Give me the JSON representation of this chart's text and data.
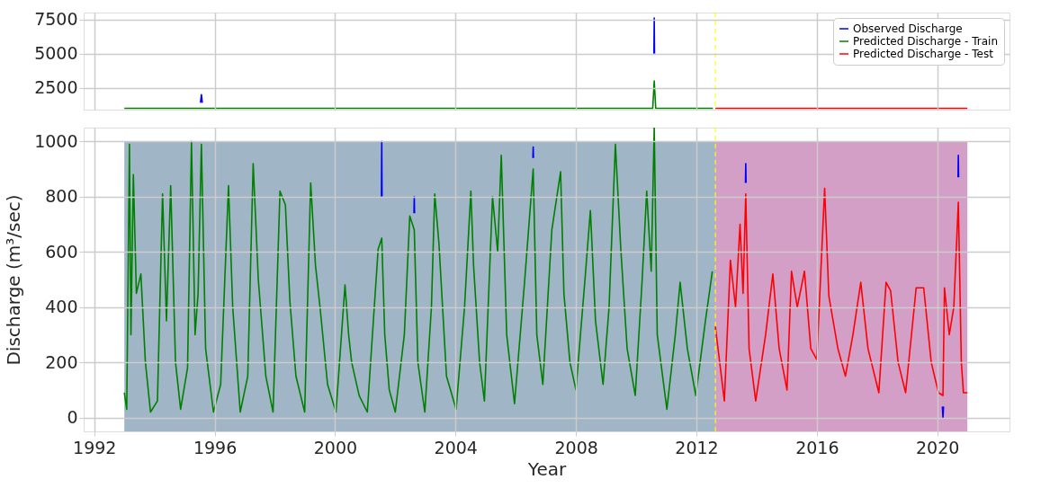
{
  "chart_data": [
    {
      "type": "line",
      "xlim": [
        1991.65,
        2022.4
      ],
      "xticks": [
        1992,
        1996,
        2000,
        2004,
        2008,
        2012,
        2016,
        2020
      ],
      "ylim": [
        900,
        8000
      ],
      "yticks": [
        2500,
        5000,
        7500
      ],
      "tick_labels": "y",
      "grid": true,
      "legend": "top right",
      "line_style": "solid",
      "ref_lines": [
        {
          "axis": "x",
          "value": 2012.63,
          "color": "#ffff00",
          "line_style": "dashed"
        }
      ],
      "series": [
        {
          "name": "Observed Discharge",
          "color": "#0000ff",
          "x": [
            1995.53,
            1995.56,
            1995.59,
            1995.6,
            2010.59,
            2010.6,
            2010.61
          ],
          "values": [
            1400,
            2000,
            1400,
            null,
            5000,
            7600,
            5000
          ]
        },
        {
          "name": "Predicted Discharge - Train",
          "color": "#008000",
          "x": [
            1993.0,
            2010.55,
            2010.6,
            2010.65,
            2012.55
          ],
          "values": [
            1000,
            1000,
            3000,
            1000,
            1000
          ]
        },
        {
          "name": "Predicted Discharge - Test",
          "color": "#ff0000",
          "x": [
            2012.63,
            2021.0
          ],
          "values": [
            1000,
            1000
          ]
        }
      ]
    },
    {
      "type": "line",
      "xlim": [
        1991.65,
        2022.4
      ],
      "xticks": [
        1992,
        1996,
        2000,
        2004,
        2008,
        2012,
        2016,
        2020
      ],
      "ylim": [
        -50,
        1050
      ],
      "yticks": [
        0,
        200,
        400,
        600,
        800,
        1000
      ],
      "xlabel": "Year",
      "ylabel": "Discharge (m³/sec)",
      "grid": true,
      "line_style": "solid",
      "ref_lines": [
        {
          "axis": "x",
          "value": 2012.63,
          "color": "#ffff00",
          "line_style": "dashed"
        }
      ],
      "bands": [
        {
          "axis": "x",
          "from": 1993.0,
          "to": 2012.63,
          "color": "#a0b5c5"
        },
        {
          "axis": "x",
          "from": 2012.63,
          "to": 2021.0,
          "color": "#d49fc7"
        }
      ],
      "series": [
        {
          "color": "#0000ff",
          "x": [
            2001.54,
            2001.55,
            2001.56,
            2001.6,
            2002.62,
            2002.63,
            2002.64,
            2002.7,
            2006.57,
            2006.58,
            2006.59,
            2006.6,
            2013.63,
            2013.64,
            2013.65,
            2013.7,
            2020.17,
            2020.19,
            2020.21,
            2020.25,
            2020.69,
            2020.7,
            2020.71
          ],
          "values": [
            800,
            1000,
            800,
            null,
            740,
            800,
            740,
            null,
            940,
            980,
            940,
            null,
            850,
            920,
            850,
            null,
            40,
            0,
            40,
            null,
            870,
            950,
            870
          ]
        },
        {
          "color": "#008000",
          "x": [
            1993.0,
            1993.08,
            1993.17,
            1993.22,
            1993.3,
            1993.4,
            1993.55,
            1993.7,
            1993.87,
            1994.1,
            1994.27,
            1994.4,
            1994.54,
            1994.7,
            1994.87,
            1995.1,
            1995.23,
            1995.35,
            1995.45,
            1995.56,
            1995.7,
            1995.96,
            1996.2,
            1996.46,
            1996.6,
            1996.85,
            1997.1,
            1997.28,
            1997.45,
            1997.7,
            1997.94,
            1998.17,
            1998.35,
            1998.5,
            1998.7,
            1998.99,
            1999.19,
            1999.35,
            1999.5,
            1999.75,
            2000.03,
            2000.33,
            2000.45,
            2000.55,
            2000.8,
            2001.07,
            2001.43,
            2001.55,
            2001.65,
            2001.8,
            2002.0,
            2002.3,
            2002.48,
            2002.63,
            2002.75,
            2002.98,
            2003.2,
            2003.31,
            2003.45,
            2003.7,
            2004.02,
            2004.3,
            2004.51,
            2004.6,
            2004.8,
            2004.96,
            2005.23,
            2005.4,
            2005.52,
            2005.7,
            2005.96,
            2006.3,
            2006.58,
            2006.7,
            2006.9,
            2007.2,
            2007.49,
            2007.6,
            2007.8,
            2008.0,
            2008.3,
            2008.48,
            2008.65,
            2008.9,
            2009.1,
            2009.31,
            2009.49,
            2009.7,
            2009.97,
            2010.2,
            2010.35,
            2010.5,
            2010.6,
            2010.7,
            2011.02,
            2011.3,
            2011.46,
            2011.7,
            2011.98,
            2012.3,
            2012.53
          ],
          "values": [
            90,
            30,
            990,
            300,
            880,
            450,
            520,
            200,
            20,
            60,
            810,
            350,
            840,
            200,
            30,
            180,
            1000,
            300,
            450,
            990,
            250,
            20,
            120,
            840,
            400,
            20,
            150,
            920,
            500,
            150,
            20,
            820,
            770,
            420,
            150,
            20,
            850,
            550,
            400,
            120,
            20,
            480,
            300,
            200,
            80,
            20,
            610,
            650,
            300,
            100,
            20,
            300,
            730,
            680,
            200,
            20,
            400,
            810,
            630,
            150,
            30,
            400,
            820,
            550,
            200,
            60,
            800,
            600,
            950,
            300,
            50,
            500,
            900,
            300,
            120,
            680,
            890,
            450,
            200,
            100,
            500,
            750,
            350,
            120,
            400,
            990,
            610,
            250,
            80,
            500,
            820,
            530,
            1050,
            300,
            30,
            300,
            490,
            250,
            80,
            350,
            530
          ]
        },
        {
          "color": "#ff0000",
          "x": [
            2012.63,
            2012.93,
            2013.13,
            2013.3,
            2013.45,
            2013.55,
            2013.64,
            2013.75,
            2013.97,
            2014.3,
            2014.54,
            2014.75,
            2015.01,
            2015.16,
            2015.35,
            2015.59,
            2015.8,
            2016.0,
            2016.26,
            2016.4,
            2016.7,
            2016.95,
            2017.2,
            2017.46,
            2017.7,
            2018.06,
            2018.3,
            2018.45,
            2018.7,
            2018.95,
            2019.3,
            2019.55,
            2019.8,
            2020.04,
            2020.19,
            2020.24,
            2020.4,
            2020.55,
            2020.7,
            2020.8,
            2020.87,
            2021.0
          ],
          "values": [
            330,
            60,
            570,
            400,
            700,
            450,
            810,
            250,
            60,
            300,
            520,
            250,
            100,
            530,
            400,
            530,
            250,
            210,
            830,
            440,
            250,
            150,
            300,
            490,
            250,
            90,
            490,
            460,
            200,
            90,
            470,
            470,
            200,
            90,
            80,
            470,
            300,
            400,
            780,
            200,
            90,
            90
          ]
        }
      ]
    }
  ]
}
